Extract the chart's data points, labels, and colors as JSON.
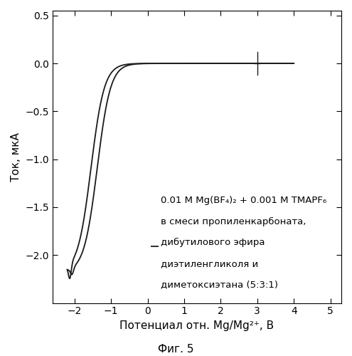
{
  "xlabel": "Потенциал отн. Mg/Mg²⁺, В",
  "ylabel": "Ток, мкА",
  "figcaption": "Фиг. 5",
  "xlim": [
    -2.6,
    5.3
  ],
  "ylim": [
    -2.5,
    0.55
  ],
  "xticks": [
    -2,
    -1,
    0,
    1,
    2,
    3,
    4,
    5
  ],
  "yticks": [
    -2.0,
    -1.5,
    -1.0,
    -0.5,
    0.0,
    0.5
  ],
  "legend_line1": "0.01 M Mg(BF₄)₂ + 0.001 M TMAPF₆",
  "legend_line2": "в смеси пропиленкарбоната,",
  "legend_line3": "дибутилового эфира",
  "legend_line4": "диэтиленгликоля и",
  "legend_line5": "диметоксиэтана (5:3:1)",
  "cross_x": 3.0,
  "cross_y": 0.0,
  "line_color": "#1a1a1a",
  "bg_color": "#ffffff",
  "font_size": 9.5,
  "label_font_size": 11
}
